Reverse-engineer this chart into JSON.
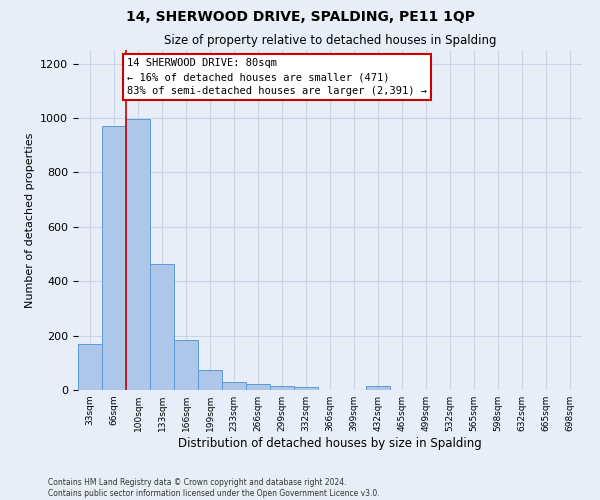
{
  "title": "14, SHERWOOD DRIVE, SPALDING, PE11 1QP",
  "subtitle": "Size of property relative to detached houses in Spalding",
  "xlabel": "Distribution of detached houses by size in Spalding",
  "ylabel": "Number of detached properties",
  "footer_line1": "Contains HM Land Registry data © Crown copyright and database right 2024.",
  "footer_line2": "Contains public sector information licensed under the Open Government Licence v3.0.",
  "bin_labels": [
    "33sqm",
    "66sqm",
    "100sqm",
    "133sqm",
    "166sqm",
    "199sqm",
    "233sqm",
    "266sqm",
    "299sqm",
    "332sqm",
    "366sqm",
    "399sqm",
    "432sqm",
    "465sqm",
    "499sqm",
    "532sqm",
    "565sqm",
    "598sqm",
    "632sqm",
    "665sqm",
    "698sqm"
  ],
  "bar_values": [
    170,
    970,
    995,
    465,
    185,
    75,
    28,
    22,
    15,
    10,
    0,
    0,
    15,
    0,
    0,
    0,
    0,
    0,
    0,
    0,
    0
  ],
  "bar_color": "#aec6e8",
  "bar_edge_color": "#5b9bd5",
  "grid_color": "#c8d4e8",
  "red_line_x": 1.5,
  "annotation_text": "14 SHERWOOD DRIVE: 80sqm\n← 16% of detached houses are smaller (471)\n83% of semi-detached houses are larger (2,391) →",
  "annotation_box_color": "#ffffff",
  "annotation_box_edge_color": "#cc0000",
  "ylim": [
    0,
    1250
  ],
  "yticks": [
    0,
    200,
    400,
    600,
    800,
    1000,
    1200
  ],
  "background_color": "#e8eef8",
  "axes_background_color": "#e8eef8",
  "figsize": [
    6.0,
    5.0
  ],
  "dpi": 100
}
